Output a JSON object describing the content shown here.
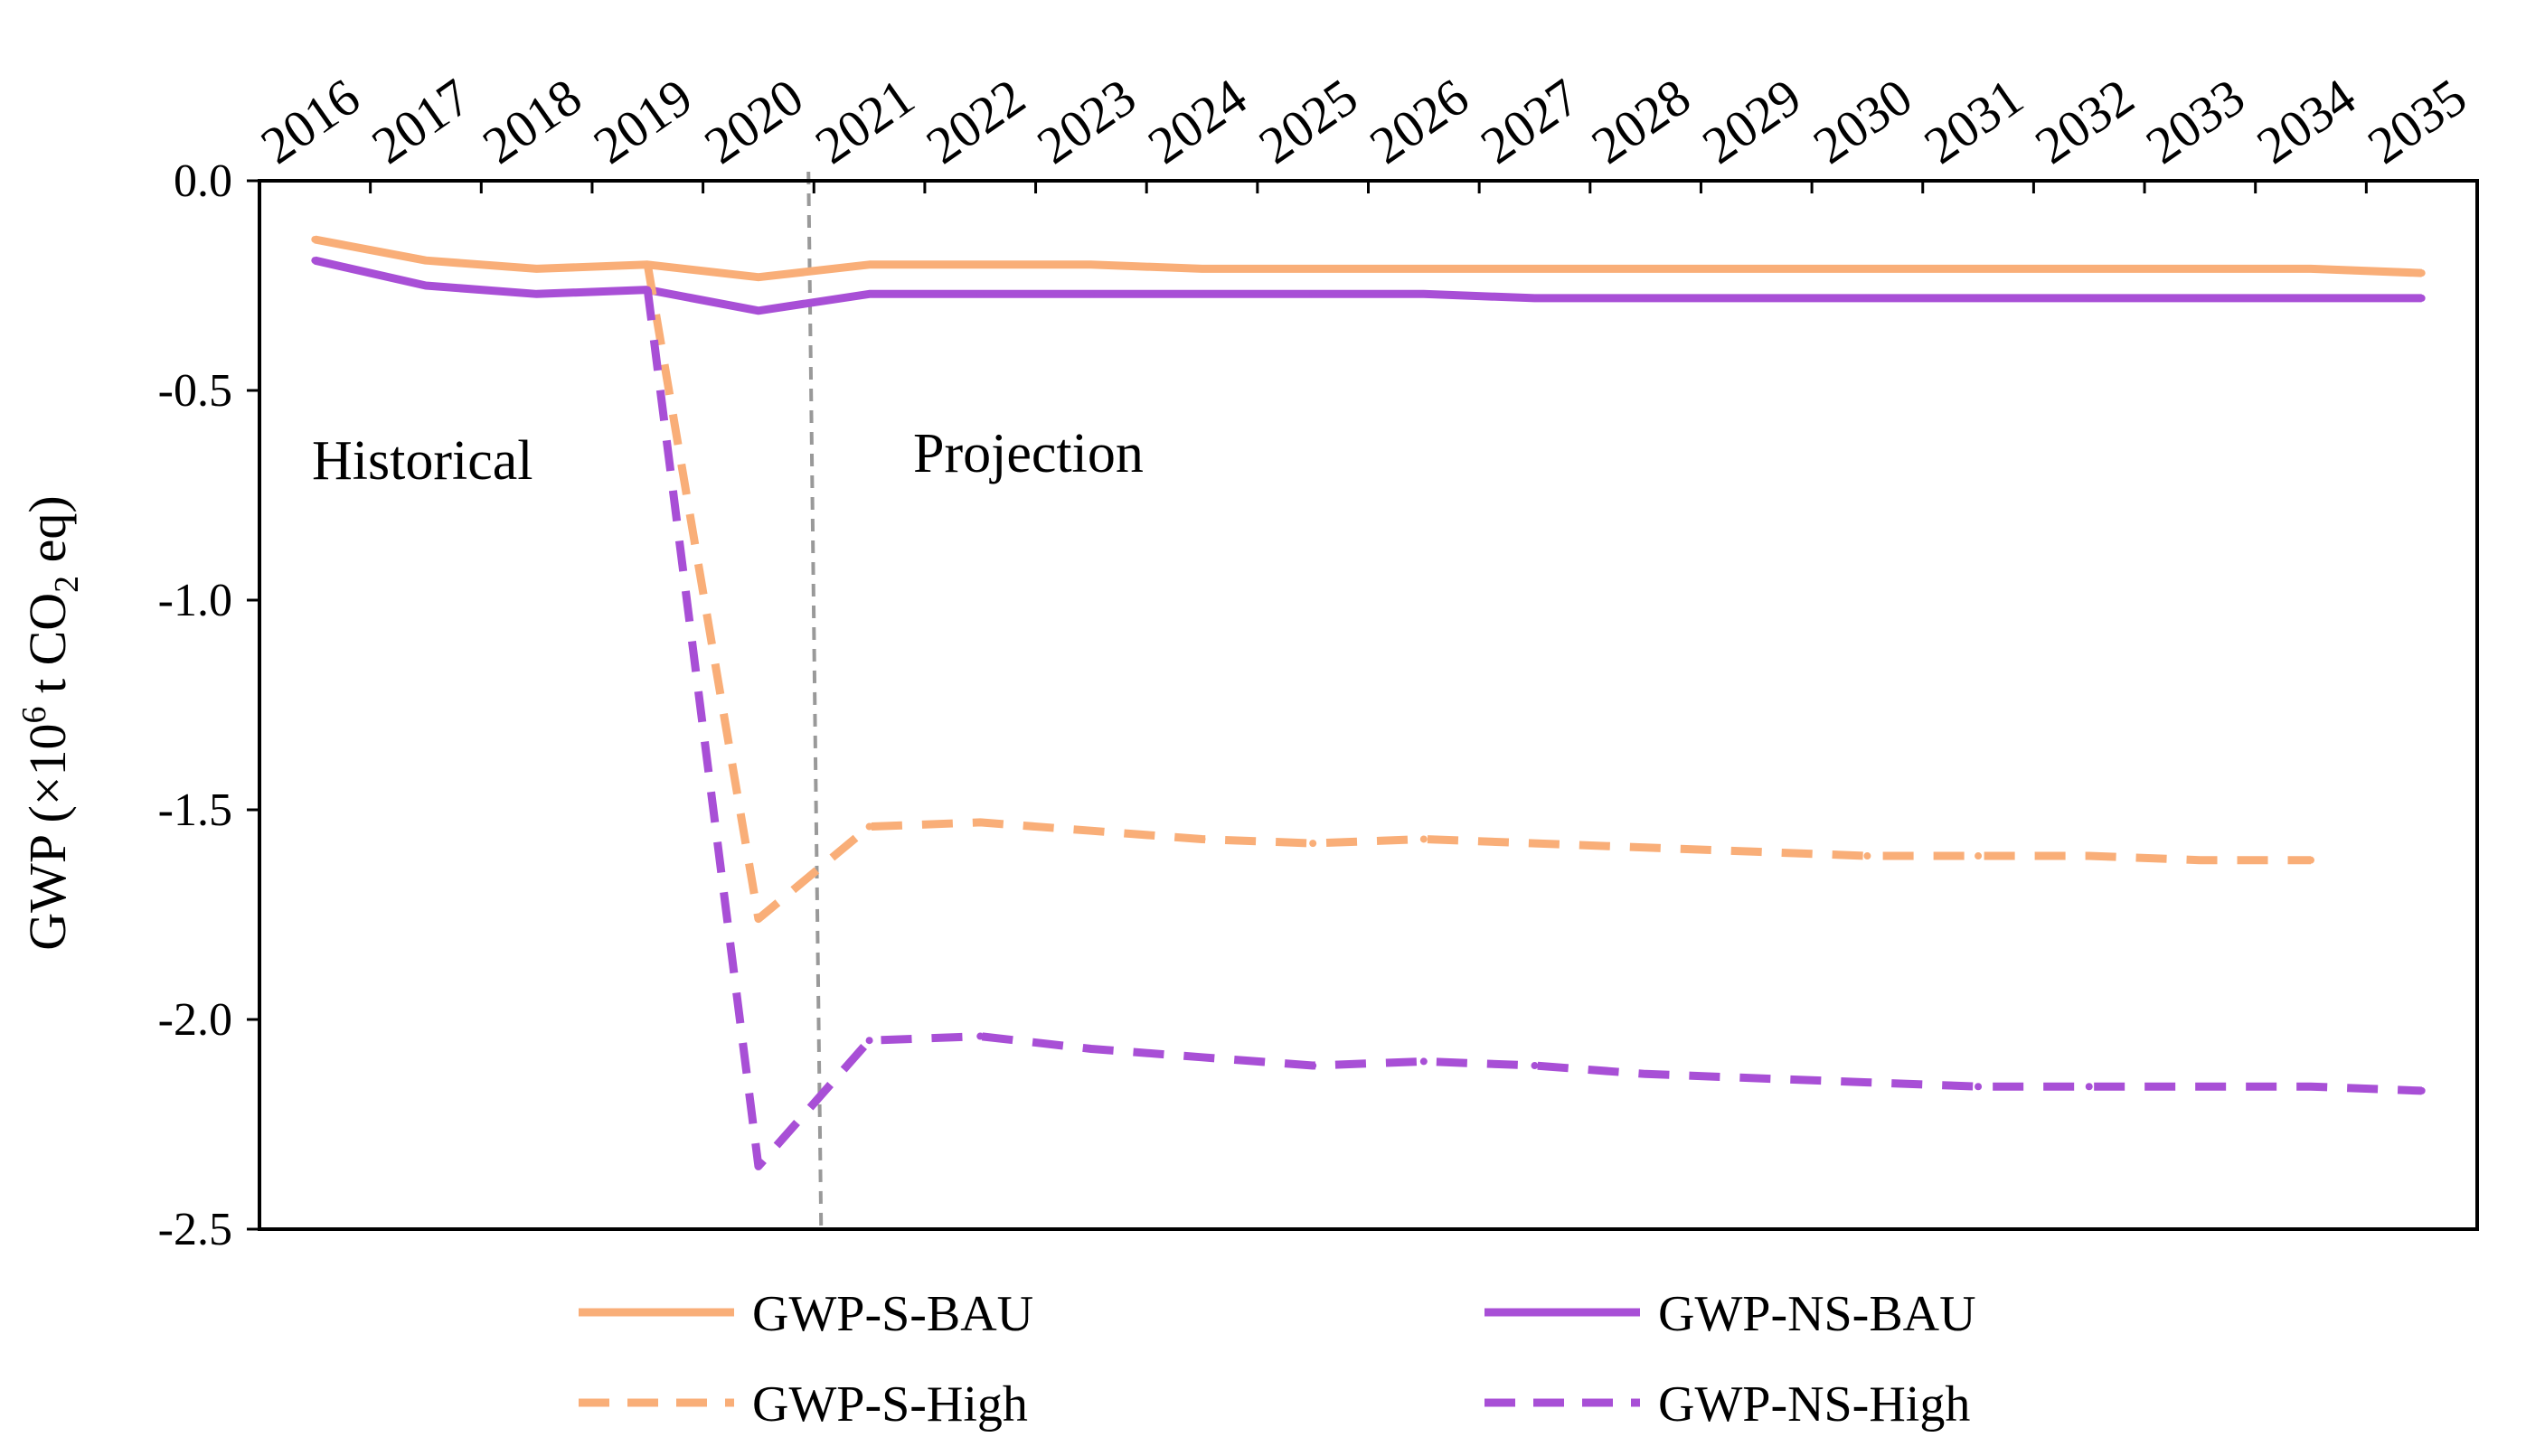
{
  "chart_data": {
    "type": "line",
    "title": "",
    "xlabel": "",
    "ylabel": "GWP (×10⁶ t CO₂ eq)",
    "ylabel_parts": {
      "pre": "GWP (×10",
      "sup": "6",
      "mid": " t CO",
      "sub": "2",
      "post": " eq)"
    },
    "x": [
      "2016",
      "2017",
      "2018",
      "2019",
      "2020",
      "2021",
      "2022",
      "2023",
      "2024",
      "2025",
      "2026",
      "2027",
      "2028",
      "2029",
      "2030",
      "2031",
      "2032",
      "2033",
      "2034",
      "2035"
    ],
    "ylim": [
      -2.5,
      0.0
    ],
    "yticks": [
      0.0,
      -0.5,
      -1.0,
      -1.5,
      -2.0,
      -2.5
    ],
    "ytick_labels": [
      "0.0",
      "-0.5",
      "-1.0",
      "-1.5",
      "-2.0",
      "-2.5"
    ],
    "grid": false,
    "divider_year_index": 4.5,
    "annotations": {
      "left": "Historical",
      "right": "Projection"
    },
    "legend_position": "bottom",
    "series": [
      {
        "name": "GWP-S-BAU",
        "color": "#F9AE78",
        "dash": "solid",
        "values": [
          -0.14,
          -0.19,
          -0.21,
          -0.2,
          -0.23,
          -0.2,
          -0.2,
          -0.2,
          -0.21,
          -0.21,
          -0.21,
          -0.21,
          -0.21,
          -0.21,
          -0.21,
          -0.21,
          -0.21,
          -0.21,
          -0.21,
          -0.22
        ]
      },
      {
        "name": "GWP-NS-BAU",
        "color": "#A84FD6",
        "dash": "solid",
        "values": [
          -0.19,
          -0.25,
          -0.27,
          -0.26,
          -0.31,
          -0.27,
          -0.27,
          -0.27,
          -0.27,
          -0.27,
          -0.27,
          -0.28,
          -0.28,
          -0.28,
          -0.28,
          -0.28,
          -0.28,
          -0.28,
          -0.28,
          -0.28
        ]
      },
      {
        "name": "GWP-S-High",
        "color": "#F9AE78",
        "dash": "dashed",
        "values": [
          null,
          null,
          null,
          -0.2,
          -1.76,
          -1.54,
          -1.53,
          -1.55,
          -1.57,
          -1.58,
          -1.57,
          -1.58,
          -1.59,
          -1.6,
          -1.61,
          -1.61,
          -1.61,
          -1.62,
          -1.62,
          null
        ]
      },
      {
        "name": "GWP-NS-High",
        "color": "#A84FD6",
        "dash": "dashed",
        "values": [
          null,
          null,
          null,
          -0.26,
          -2.35,
          -2.05,
          -2.04,
          -2.07,
          -2.09,
          -2.11,
          -2.1,
          -2.11,
          -2.13,
          -2.14,
          -2.15,
          -2.16,
          -2.16,
          -2.16,
          -2.16,
          -2.17
        ]
      }
    ]
  }
}
